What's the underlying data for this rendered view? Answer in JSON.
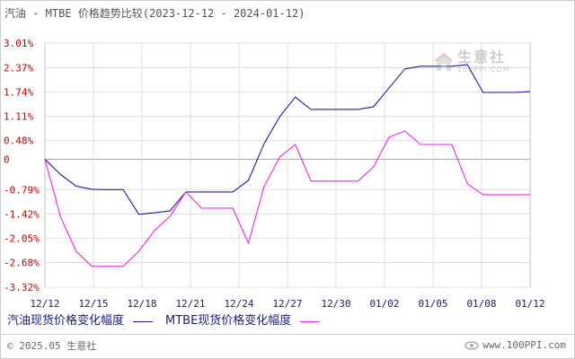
{
  "chart_data": {
    "type": "line",
    "title": "汽油 - MTBE 价格趋势比较(2023-12-12 - 2024-01-12)",
    "x": [
      "2023-12-12",
      "2023-12-13",
      "2023-12-14",
      "2023-12-15",
      "2023-12-16",
      "2023-12-17",
      "2023-12-18",
      "2023-12-19",
      "2023-12-20",
      "2023-12-21",
      "2023-12-22",
      "2023-12-23",
      "2023-12-24",
      "2023-12-25",
      "2023-12-26",
      "2023-12-27",
      "2023-12-28",
      "2023-12-29",
      "2023-12-30",
      "2023-12-31",
      "2024-01-01",
      "2024-01-02",
      "2024-01-03",
      "2024-01-04",
      "2024-01-05",
      "2024-01-06",
      "2024-01-07",
      "2024-01-08",
      "2024-01-09",
      "2024-01-10",
      "2024-01-11",
      "2024-01-12"
    ],
    "xticks": [
      "12/12",
      "12/15",
      "12/18",
      "12/21",
      "12/24",
      "12/27",
      "12/30",
      "01/02",
      "01/05",
      "01/08",
      "01/12"
    ],
    "yticks": [
      {
        "value": 3.01,
        "label": "3.01%"
      },
      {
        "value": 2.37,
        "label": "2.37%"
      },
      {
        "value": 1.74,
        "label": "1.74%"
      },
      {
        "value": 1.11,
        "label": "1.11%"
      },
      {
        "value": 0.48,
        "label": "0.48%"
      },
      {
        "value": 0,
        "label": "0"
      },
      {
        "value": -0.79,
        "label": "-0.79%"
      },
      {
        "value": -1.42,
        "label": "-1.42%"
      },
      {
        "value": -2.05,
        "label": "-2.05%"
      },
      {
        "value": -2.68,
        "label": "-2.68%"
      },
      {
        "value": -3.32,
        "label": "-3.32%"
      }
    ],
    "ylim": [
      -3.32,
      3.01
    ],
    "grid": true,
    "legend": "bottom-left",
    "series": [
      {
        "name": "汽油现货价格变化幅度",
        "color": "#1c1ca8",
        "values": [
          0,
          -0.4,
          -0.7,
          -0.78,
          -0.79,
          -0.79,
          -1.43,
          -1.39,
          -1.34,
          -0.85,
          -0.85,
          -0.85,
          -0.85,
          -0.55,
          0.4,
          1.1,
          1.61,
          1.29,
          1.29,
          1.29,
          1.29,
          1.36,
          1.85,
          2.34,
          2.41,
          2.41,
          2.41,
          2.45,
          1.73,
          1.73,
          1.73,
          1.75
        ]
      },
      {
        "name": "MTBE现货价格变化幅度",
        "color": "#ee22ee",
        "values": [
          0,
          -1.5,
          -2.39,
          -2.78,
          -2.78,
          -2.78,
          -2.39,
          -1.85,
          -1.48,
          -0.85,
          -1.27,
          -1.27,
          -1.27,
          -2.18,
          -0.71,
          0.05,
          0.38,
          -0.57,
          -0.57,
          -0.57,
          -0.57,
          -0.2,
          0.57,
          0.73,
          0.38,
          0.38,
          0.38,
          -0.64,
          -0.92,
          -0.92,
          -0.92,
          -0.92
        ]
      }
    ]
  },
  "watermark": {
    "brand": "生意社",
    "site": "100PPI.COM"
  },
  "footer": {
    "copyright": "© 2025.05 生意社",
    "site": "www.100PPI.com"
  }
}
